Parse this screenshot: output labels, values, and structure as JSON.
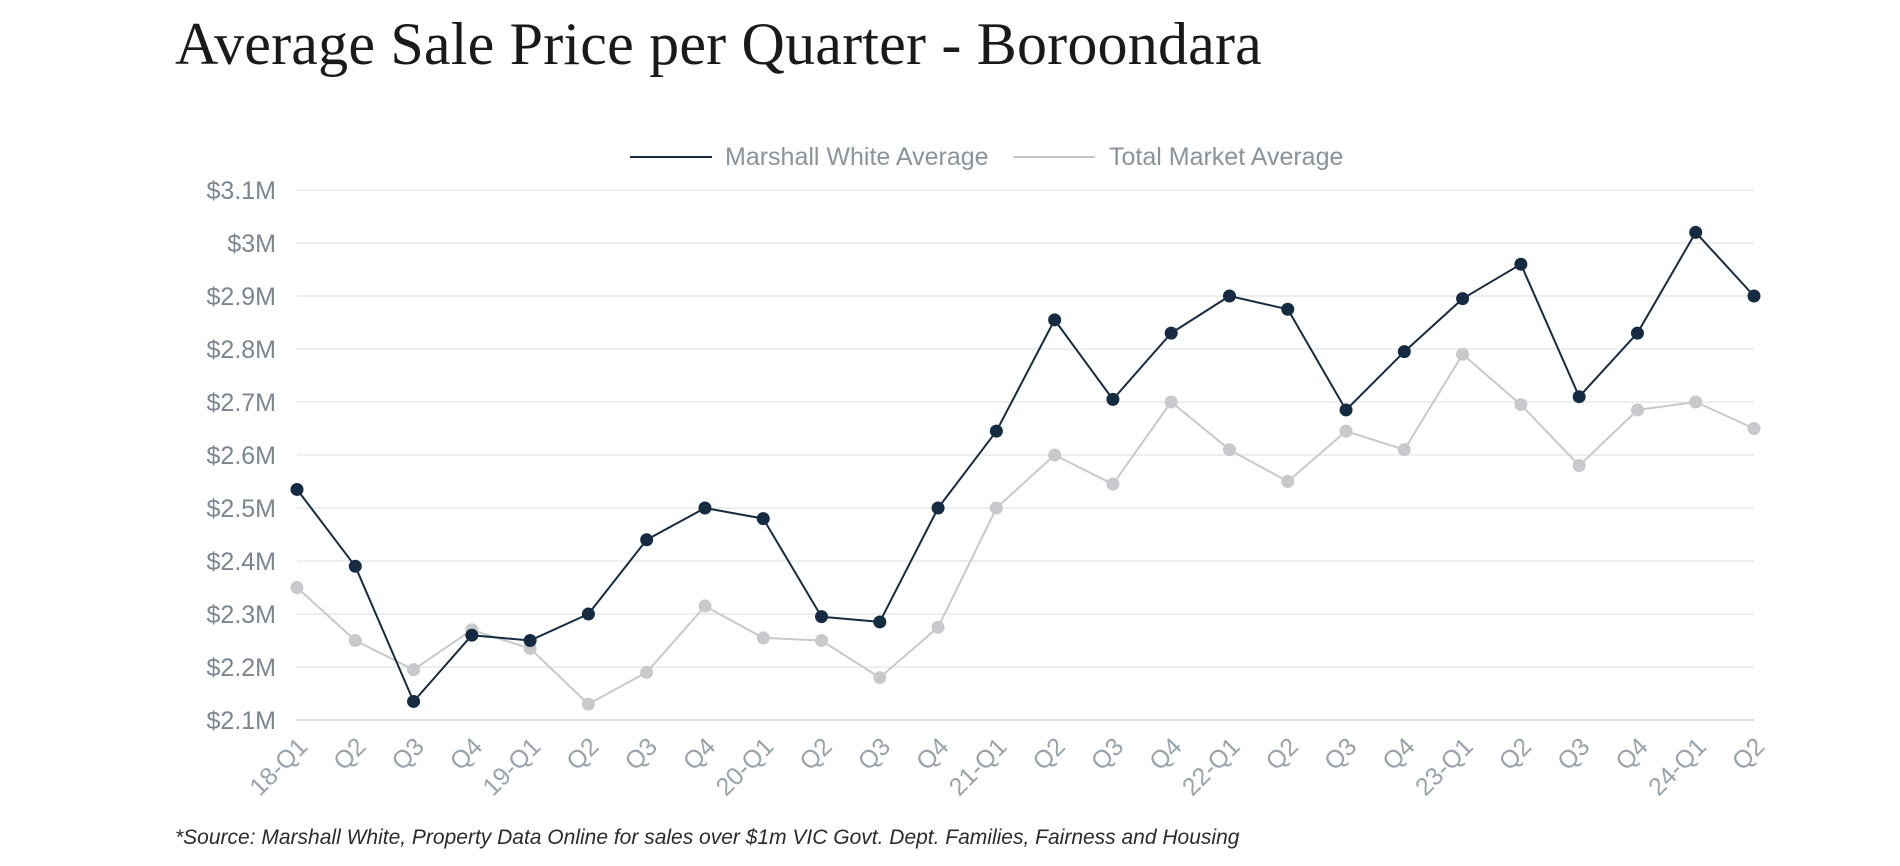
{
  "chart_data": {
    "type": "line",
    "title": "Average Sale Price per Quarter - Boroondara",
    "xlabel": "",
    "ylabel": "",
    "categories": [
      "18-Q1",
      "Q2",
      "Q3",
      "Q4",
      "19-Q1",
      "Q2",
      "Q3",
      "Q4",
      "20-Q1",
      "Q2",
      "Q3",
      "Q4",
      "21-Q1",
      "Q2",
      "Q3",
      "Q4",
      "22-Q1",
      "Q2",
      "Q3",
      "Q4",
      "23-Q1",
      "Q2",
      "Q3",
      "Q4",
      "24-Q1",
      "Q2"
    ],
    "y_ticks": [
      "$2.1M",
      "$2.2M",
      "$2.3M",
      "$2.4M",
      "$2.5M",
      "$2.6M",
      "$2.7M",
      "$2.8M",
      "$2.9M",
      "$3M",
      "$3.1M"
    ],
    "y_tick_values": [
      2.1,
      2.2,
      2.3,
      2.4,
      2.5,
      2.6,
      2.7,
      2.8,
      2.9,
      3.0,
      3.1
    ],
    "ylim": [
      2.1,
      3.1
    ],
    "y_unit": "millions AUD",
    "grid": "horizontal",
    "legend_position": "top-center",
    "series": [
      {
        "name": "Marshall White Average",
        "color": "#142b42",
        "values": [
          2.535,
          2.39,
          2.135,
          2.26,
          2.25,
          2.3,
          2.44,
          2.5,
          2.48,
          2.295,
          2.285,
          2.5,
          2.645,
          2.855,
          2.705,
          2.83,
          2.9,
          2.875,
          2.685,
          2.795,
          2.895,
          2.96,
          2.71,
          2.83,
          3.02,
          2.9
        ]
      },
      {
        "name": "Total Market Average",
        "color": "#c8c9cc",
        "values": [
          2.35,
          2.25,
          2.195,
          2.27,
          2.235,
          2.13,
          2.19,
          2.315,
          2.255,
          2.25,
          2.18,
          2.275,
          2.5,
          2.6,
          2.545,
          2.7,
          2.61,
          2.55,
          2.645,
          2.61,
          2.79,
          2.695,
          2.58,
          2.685,
          2.7,
          2.65
        ]
      }
    ]
  },
  "footnote": "*Source: Marshall White, Property Data Online for sales over $1m VIC Govt. Dept. Families, Fairness and Housing"
}
